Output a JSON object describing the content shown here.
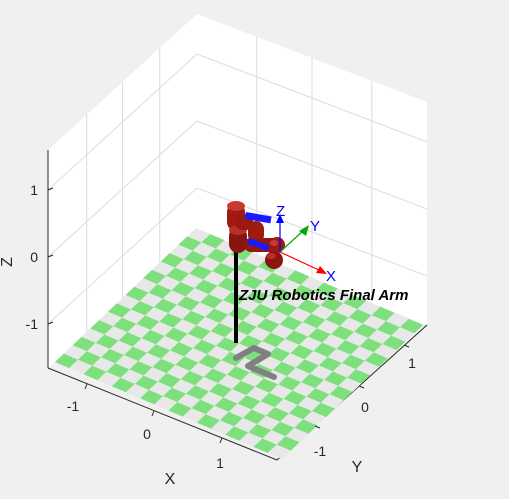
{
  "robot_name": "ZJU Robotics Final Arm",
  "axes": {
    "x": {
      "label": "X",
      "ticks": [
        "-1",
        "0",
        "1"
      ]
    },
    "y": {
      "label": "Y",
      "ticks": [
        "-1",
        "0",
        "1"
      ]
    },
    "z": {
      "label": "Z",
      "ticks": [
        "1",
        "0",
        "-1"
      ]
    }
  },
  "end_effector_frame": {
    "x_label": "X",
    "y_label": "Y",
    "z_label": "Z"
  },
  "colors": {
    "background": "#f0f0f0",
    "pane": "#ffffff",
    "grid": "#dcdcdc",
    "floor_light": "#7de07d",
    "floor_dark": "#e8e8e8",
    "link_red": "#a11a12",
    "pole": "#000000",
    "base": "#808080",
    "axis_x": "#ff0000",
    "axis_y": "#00aa00",
    "axis_z": "#0000ff"
  }
}
